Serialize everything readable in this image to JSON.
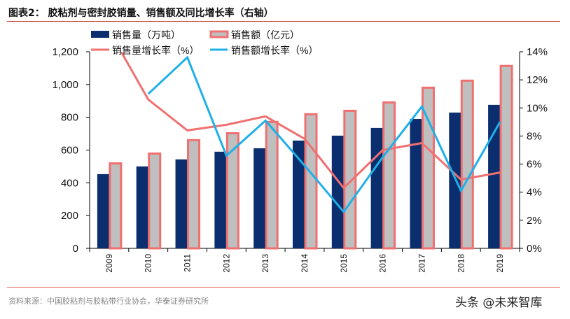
{
  "title": "图表2：  胶粘剂与密封胶销量、销售额及同比增长率（右轴）",
  "source": "资料来源：中国胶粘剂与胶粘带行业协会，华泰证券研究所",
  "watermark": "头条 @未来智库",
  "colors": {
    "volume": "#0a2e6e",
    "revenue_fill": "#bfbfbf",
    "revenue_border": "#f07070",
    "volume_growth": "#f07070",
    "revenue_growth": "#1fb0e8"
  },
  "chart_data": {
    "type": "bar",
    "categories": [
      "2009",
      "2010",
      "2011",
      "2012",
      "2013",
      "2014",
      "2015",
      "2016",
      "2017",
      "2018",
      "2019"
    ],
    "series": [
      {
        "name": "销售量（万吨）",
        "kind": "bar",
        "axis": "left",
        "values": [
          453,
          500,
          543,
          590,
          611,
          658,
          688,
          735,
          790,
          829,
          876
        ]
      },
      {
        "name": "销售额（亿元）",
        "kind": "bar",
        "axis": "left",
        "values": [
          525,
          585,
          667,
          709,
          778,
          825,
          846,
          897,
          987,
          1030,
          1120
        ]
      },
      {
        "name": "销售量增长率（%）",
        "kind": "line",
        "axis": "right",
        "values": [
          15.5,
          10.6,
          8.4,
          8.8,
          9.4,
          7.8,
          4.3,
          7.0,
          7.5,
          4.9,
          5.4
        ]
      },
      {
        "name": "销售额增长率（%）",
        "kind": "line",
        "axis": "right",
        "values": [
          null,
          11.0,
          13.6,
          6.6,
          9.1,
          5.9,
          2.6,
          6.5,
          10.1,
          4.1,
          9.0
        ]
      }
    ],
    "left_axis": {
      "ylim": [
        0,
        1200
      ],
      "ticks": [
        "0",
        "200",
        "400",
        "600",
        "800",
        "1,000",
        "1,200"
      ]
    },
    "right_axis": {
      "ylim": [
        0,
        14
      ],
      "ticks": [
        "0%",
        "2%",
        "4%",
        "6%",
        "8%",
        "10%",
        "12%",
        "14%"
      ]
    },
    "legend": "top",
    "grid": false
  }
}
